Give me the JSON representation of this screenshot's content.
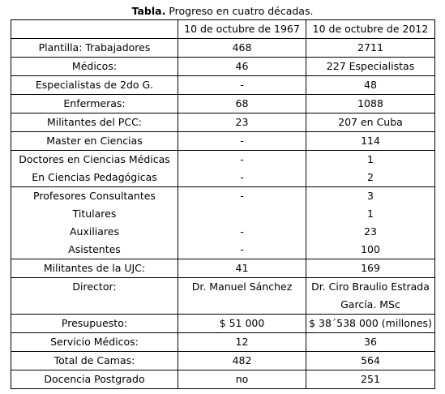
{
  "caption": {
    "bold": "Tabla.",
    "text": " Progreso  en cuatro décadas."
  },
  "table": {
    "header": [
      "",
      "10 de octubre de 1967",
      "10 de octubre de 2012"
    ],
    "rows": [
      {
        "label": [
          "Plantilla: Trabajadores"
        ],
        "v1967": [
          "468"
        ],
        "v2012": [
          "2711"
        ]
      },
      {
        "label": [
          "Médicos:"
        ],
        "v1967": [
          "46"
        ],
        "v2012": [
          "227 Especialistas"
        ]
      },
      {
        "label": [
          "Especialistas de 2do G."
        ],
        "v1967": [
          "-"
        ],
        "v2012": [
          "48"
        ]
      },
      {
        "label": [
          "Enfermeras:"
        ],
        "v1967": [
          "68"
        ],
        "v2012": [
          "1088"
        ]
      },
      {
        "label": [
          "Militantes del PCC:"
        ],
        "v1967": [
          "23"
        ],
        "v2012": [
          "207 en Cuba"
        ]
      },
      {
        "label": [
          "Master en Ciencias"
        ],
        "v1967": [
          "-"
        ],
        "v2012": [
          "114"
        ]
      },
      {
        "label": [
          "Doctores en Ciencias Médicas",
          "En Ciencias Pedagógicas"
        ],
        "v1967": [
          "-",
          "-"
        ],
        "v2012": [
          "1",
          "2"
        ]
      },
      {
        "label": [
          "Profesores Consultantes",
          "Titulares",
          "Auxiliares",
          "Asistentes"
        ],
        "v1967": [
          "-",
          "",
          "-",
          "-"
        ],
        "v2012": [
          "3",
          "1",
          "23",
          "100"
        ]
      },
      {
        "label": [
          "Militantes de la UJC:"
        ],
        "v1967": [
          "41"
        ],
        "v2012": [
          "169"
        ]
      },
      {
        "label": [
          "Director:"
        ],
        "v1967": [
          "Dr. Manuel Sánchez"
        ],
        "v2012": [
          "Dr. Ciro Braulio Estrada",
          "García. MSc"
        ]
      },
      {
        "label": [
          "Presupuesto:"
        ],
        "v1967": [
          "$ 51 000"
        ],
        "v2012": [
          "$ 38´538 000 (millones)"
        ]
      },
      {
        "label": [
          "Servicio Médicos:"
        ],
        "v1967": [
          "12"
        ],
        "v2012": [
          "36"
        ]
      },
      {
        "label": [
          "Total de Camas:"
        ],
        "v1967": [
          "482"
        ],
        "v2012": [
          "564"
        ]
      },
      {
        "label": [
          "Docencia Postgrado"
        ],
        "v1967": [
          "no"
        ],
        "v2012": [
          "251"
        ]
      }
    ]
  }
}
